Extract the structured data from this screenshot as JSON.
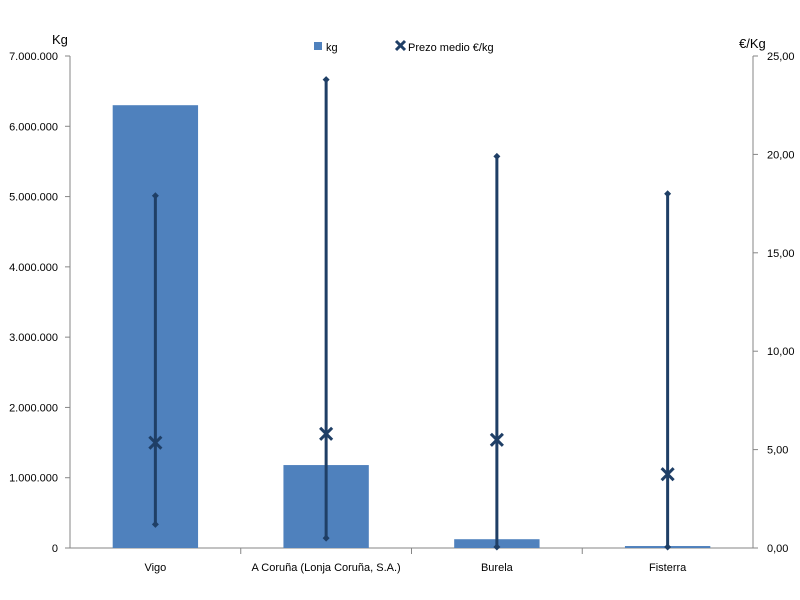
{
  "chart_data": {
    "type": "bar",
    "categories": [
      "Vigo",
      "A Coruña (Lonja Coruña, S.A.)",
      "Burela",
      "Fisterra"
    ],
    "series": [
      {
        "name": "kg",
        "axis": "left",
        "kind": "bar",
        "values": [
          6300000,
          1180000,
          125000,
          28000
        ]
      },
      {
        "name": "Prezo medio €/kg",
        "axis": "right",
        "kind": "marker-x",
        "values": [
          5.35,
          5.8,
          5.5,
          3.75
        ],
        "min": [
          1.2,
          0.5,
          0.05,
          0.05
        ],
        "max": [
          17.9,
          23.8,
          19.9,
          18.0
        ]
      }
    ],
    "ylabel_left": "Kg",
    "ylabel_right": "€/Kg",
    "ylim_left": [
      0,
      7000000
    ],
    "ylim_right": [
      0,
      25
    ],
    "yticks_left": [
      "0",
      "1.000.000",
      "2.000.000",
      "3.000.000",
      "4.000.000",
      "5.000.000",
      "6.000.000",
      "7.000.000"
    ],
    "yticks_right": [
      "0,00",
      "5,00",
      "10,00",
      "15,00",
      "20,00",
      "25,00"
    ],
    "legend_position": "top",
    "grid": false,
    "colors": {
      "bar": "#4f81bd",
      "line": "#1f3f66",
      "axis": "#868686"
    }
  }
}
